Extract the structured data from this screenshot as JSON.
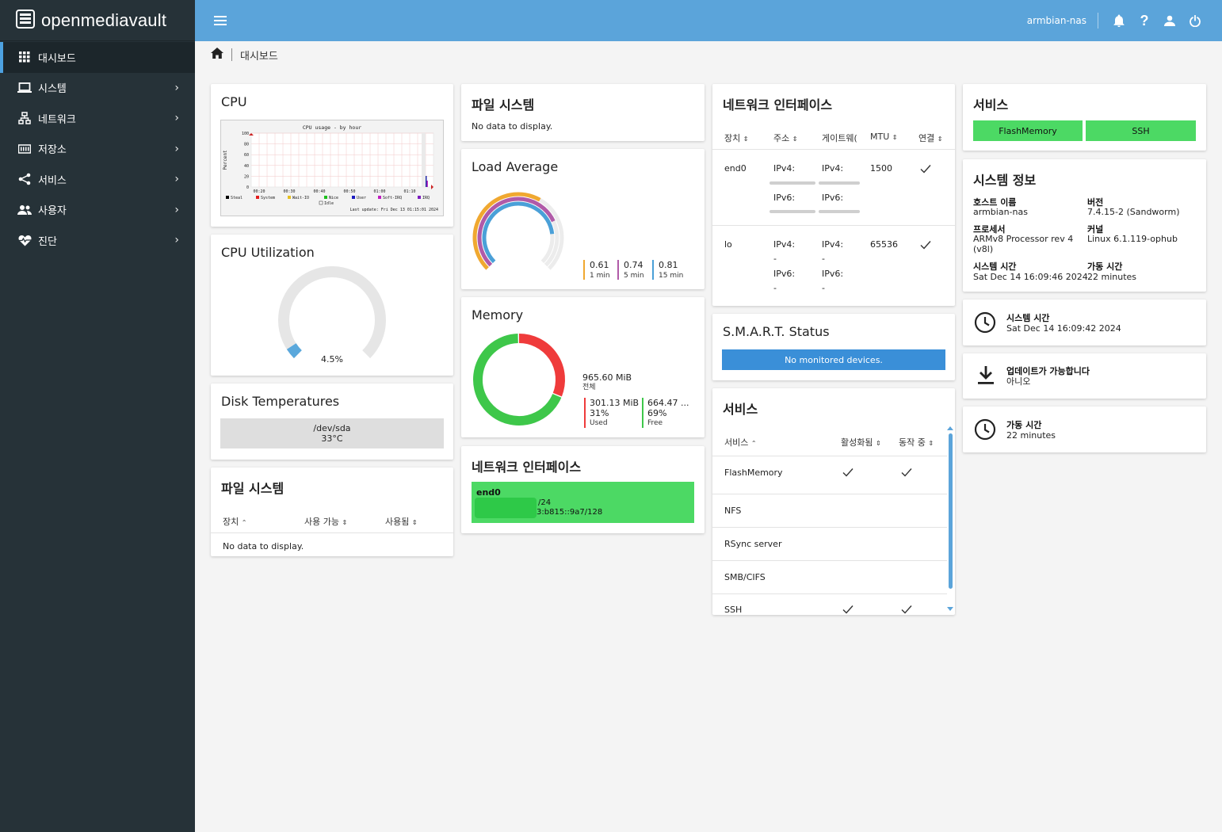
{
  "app": {
    "name": "openmediavault",
    "hostname": "armbian-nas"
  },
  "sidebar": {
    "items": [
      {
        "label": "대시보드",
        "icon": "grid-icon",
        "active": true
      },
      {
        "label": "시스템",
        "icon": "laptop-icon"
      },
      {
        "label": "네트워크",
        "icon": "network-icon"
      },
      {
        "label": "저장소",
        "icon": "storage-icon"
      },
      {
        "label": "서비스",
        "icon": "share-icon"
      },
      {
        "label": "사용자",
        "icon": "users-icon"
      },
      {
        "label": "진단",
        "icon": "heart-pulse-icon"
      }
    ]
  },
  "breadcrumb": {
    "current": "대시보드"
  },
  "cpu": {
    "title": "CPU",
    "graph": {
      "title": "CPU usage - by hour",
      "ylabel": "Percent",
      "yticks": [
        "100",
        "80",
        "60",
        "40",
        "20",
        "0"
      ],
      "xticks": [
        "00:20",
        "00:30",
        "00:40",
        "00:50",
        "01:00",
        "01:10"
      ],
      "legend_row1": [
        "Steal",
        "System",
        "Wait-IO",
        "Nice",
        "User",
        "Soft-IRQ",
        "IRQ"
      ],
      "legend_row2": [
        "Idle"
      ],
      "updated": "Last update: Fri Dec 13 01:15:01 2024"
    }
  },
  "cpu_util": {
    "title": "CPU Utilization",
    "value_label": "4.5%",
    "value": 4.5
  },
  "disk_temp": {
    "title": "Disk Temperatures",
    "device": "/dev/sda",
    "temp": "33°C"
  },
  "fs_left": {
    "title": "파일 시스템",
    "headers": [
      "장치",
      "사용 가능",
      "사용됨"
    ],
    "nodata": "No data to display."
  },
  "fs_mid": {
    "title": "파일 시스템",
    "nodata": "No data to display."
  },
  "load": {
    "title": "Load Average",
    "items": [
      {
        "value": "0.61",
        "label": "1 min",
        "color": "#f0a830"
      },
      {
        "value": "0.74",
        "label": "5 min",
        "color": "#b05aa8"
      },
      {
        "value": "0.81",
        "label": "15 min",
        "color": "#4aa0d8"
      }
    ]
  },
  "memory": {
    "title": "Memory",
    "total_value": "965.60 MiB",
    "total_label": "전체",
    "used": {
      "value": "301.13 MiB",
      "percent": "31%",
      "label": "Used",
      "fraction": 0.31
    },
    "free": {
      "value": "664.47 ...",
      "percent": "69%",
      "label": "Free"
    },
    "colors": {
      "used": "#ef3b3b",
      "free": "#3ec74a"
    }
  },
  "net_mid": {
    "title": "네트워크 인터페이스",
    "iface": "end0",
    "line1": "/24",
    "line2": "3:b815::9a7/128"
  },
  "net_table": {
    "title": "네트워크 인터페이스",
    "headers": [
      "장치",
      "주소",
      "게이트웨(",
      "MTU",
      "연결"
    ],
    "rows": [
      {
        "device": "end0",
        "addr": [
          "IPv4:",
          "IPv6:"
        ],
        "gw": [
          "IPv4:",
          "IPv6:"
        ],
        "mtu": "1500"
      },
      {
        "device": "lo",
        "addr": [
          "IPv4:",
          "-",
          "IPv6:",
          "-"
        ],
        "gw": [
          "IPv4:",
          "-",
          "IPv6:",
          "-"
        ],
        "mtu": "65536"
      }
    ]
  },
  "smart": {
    "title": "S.M.A.R.T. Status",
    "message": "No monitored devices."
  },
  "services_table": {
    "title": "서비스",
    "headers": [
      "서비스",
      "활성화됨",
      "동작 중"
    ],
    "rows": [
      {
        "name": "FlashMemory",
        "enabled": true,
        "running": true
      },
      {
        "name": "NFS",
        "enabled": false,
        "running": false
      },
      {
        "name": "RSync server",
        "enabled": false,
        "running": false
      },
      {
        "name": "SMB/CIFS",
        "enabled": false,
        "running": false
      },
      {
        "name": "SSH",
        "enabled": true,
        "running": true
      }
    ]
  },
  "services_right": {
    "title": "서비스",
    "buttons": [
      "FlashMemory",
      "SSH"
    ]
  },
  "sysinfo": {
    "title": "시스템 정보",
    "hostname_label": "호스트 이름",
    "hostname": "armbian-nas",
    "version_label": "버전",
    "version": "7.4.15-2 (Sandworm)",
    "cpu_label": "프로세서",
    "cpu": "ARMv8 Processor rev 4 (v8l)",
    "kernel_label": "커널",
    "kernel": "Linux 6.1.119-ophub",
    "time_label": "시스템 시간",
    "time": "Sat Dec 14 16:09:46 2024",
    "uptime_label": "가동 시간",
    "uptime": "22 minutes"
  },
  "widget_time": {
    "title": "시스템 시간",
    "value": "Sat Dec 14 16:09:42 2024"
  },
  "widget_update": {
    "title": "업데이트가 가능합니다",
    "value": "아니오"
  },
  "widget_uptime": {
    "title": "가동 시간",
    "value": "22 minutes"
  }
}
